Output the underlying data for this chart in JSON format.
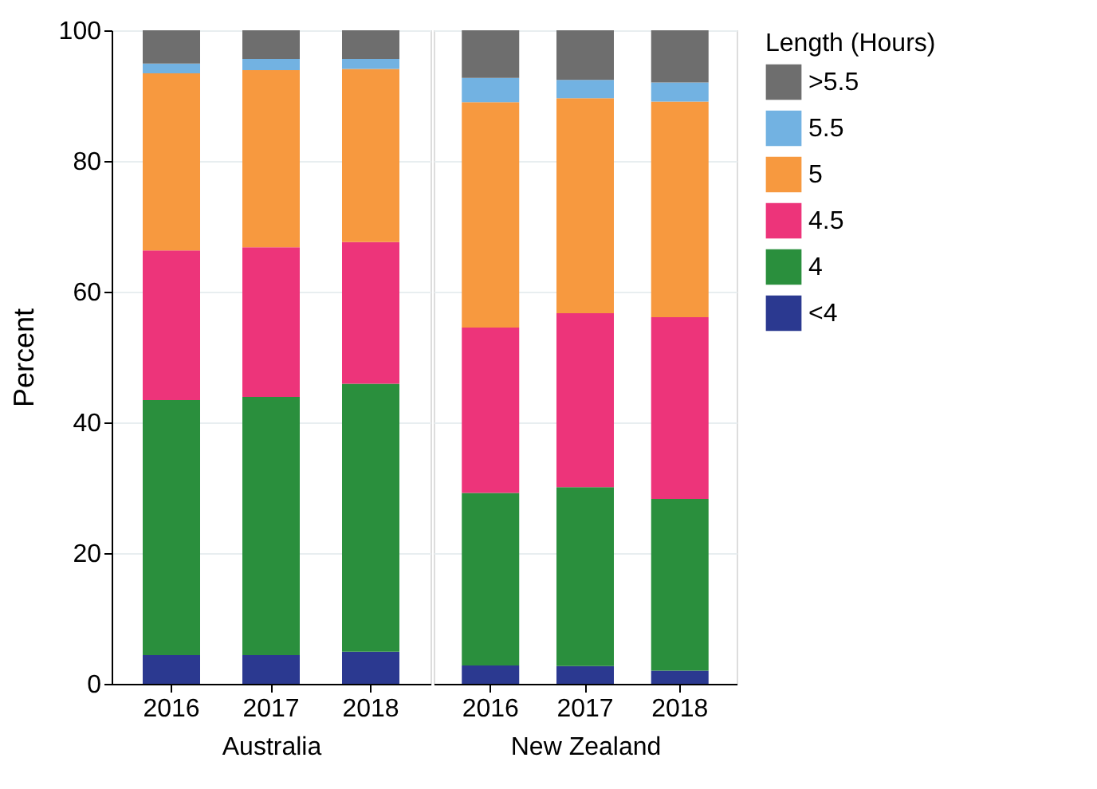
{
  "chart_data": [
    {
      "type": "bar",
      "stacked": true,
      "categories": [
        "2016",
        "2017",
        "2018"
      ],
      "xlabel": "Australia",
      "ylabel": "Percent",
      "ylim": [
        0,
        100
      ],
      "yticks": [
        0,
        20,
        40,
        60,
        80,
        100
      ],
      "grid": "y",
      "series": [
        {
          "color": "#2b3990",
          "values": [
            4.4,
            4.4,
            4.9
          ]
        },
        {
          "color": "#2a8f3d",
          "values": [
            39.0,
            39.5,
            41.0
          ]
        },
        {
          "color": "#ed347a",
          "values": [
            22.9,
            22.9,
            21.7
          ]
        },
        {
          "color": "#f7993f",
          "values": [
            27.1,
            27.1,
            26.5
          ]
        },
        {
          "color": "#72b2e2",
          "values": [
            1.5,
            1.7,
            1.5
          ]
        },
        {
          "color": "#6e6e6e",
          "values": [
            5.1,
            4.4,
            4.4
          ]
        }
      ]
    },
    {
      "type": "bar",
      "stacked": true,
      "categories": [
        "2016",
        "2017",
        "2018"
      ],
      "xlabel": "New Zealand",
      "ylim": [
        0,
        100
      ],
      "yticks": [
        0,
        20,
        40,
        60,
        80,
        100
      ],
      "grid": "y",
      "tick_labels": "x",
      "legend": "right",
      "legend_title": "Length (Hours)",
      "series": [
        {
          "name": "<4",
          "color": "#2b3990",
          "values": [
            2.8,
            2.7,
            2.0
          ]
        },
        {
          "name": "4",
          "color": "#2a8f3d",
          "values": [
            26.4,
            27.4,
            26.3
          ]
        },
        {
          "name": "4.5",
          "color": "#ed347a",
          "values": [
            25.3,
            26.6,
            27.8
          ]
        },
        {
          "name": "5",
          "color": "#f7993f",
          "values": [
            34.5,
            32.9,
            33.0
          ]
        },
        {
          "name": "5.5",
          "color": "#72b2e2",
          "values": [
            3.7,
            2.8,
            2.9
          ]
        },
        {
          "name": ">5.5",
          "color": "#6e6e6e",
          "values": [
            7.3,
            7.6,
            8.0
          ]
        }
      ]
    }
  ]
}
